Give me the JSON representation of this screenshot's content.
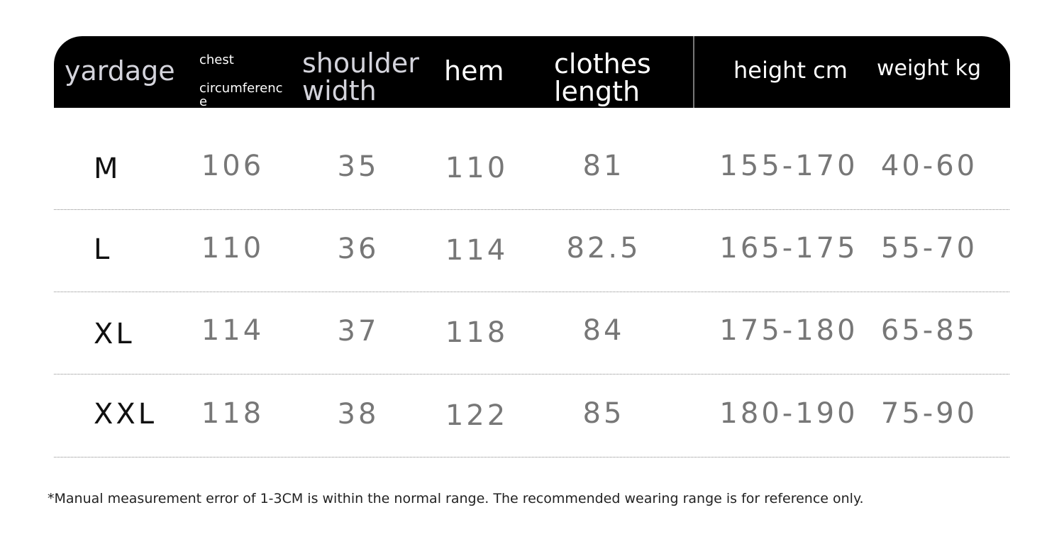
{
  "header": {
    "yardage": "yardage",
    "chest_line1": "chest",
    "chest_line2": "circumferenc",
    "chest_line3": "e",
    "shoulder_line1": "shoulder",
    "shoulder_line2": "width",
    "hem": "hem",
    "length_line1": "clothes",
    "length_line2": "length",
    "height": "height cm",
    "weight": "weight kg"
  },
  "rows": [
    {
      "size": "M",
      "chest": "106",
      "shoulder": "35",
      "hem": "110",
      "length": "81",
      "height": "155-170",
      "weight": "40-60"
    },
    {
      "size": "L",
      "chest": "110",
      "shoulder": "36",
      "hem": "114",
      "length": "82.5",
      "height": "165-175",
      "weight": "55-70"
    },
    {
      "size": "XL",
      "chest": "114",
      "shoulder": "37",
      "hem": "118",
      "length": "84",
      "height": "175-180",
      "weight": "65-85"
    },
    {
      "size": "XXL",
      "chest": "118",
      "shoulder": "38",
      "hem": "122",
      "length": "85",
      "height": "180-190",
      "weight": "75-90"
    }
  ],
  "note": "*Manual measurement error of 1-3CM is within the normal range. The recommended wearing range is for reference only."
}
